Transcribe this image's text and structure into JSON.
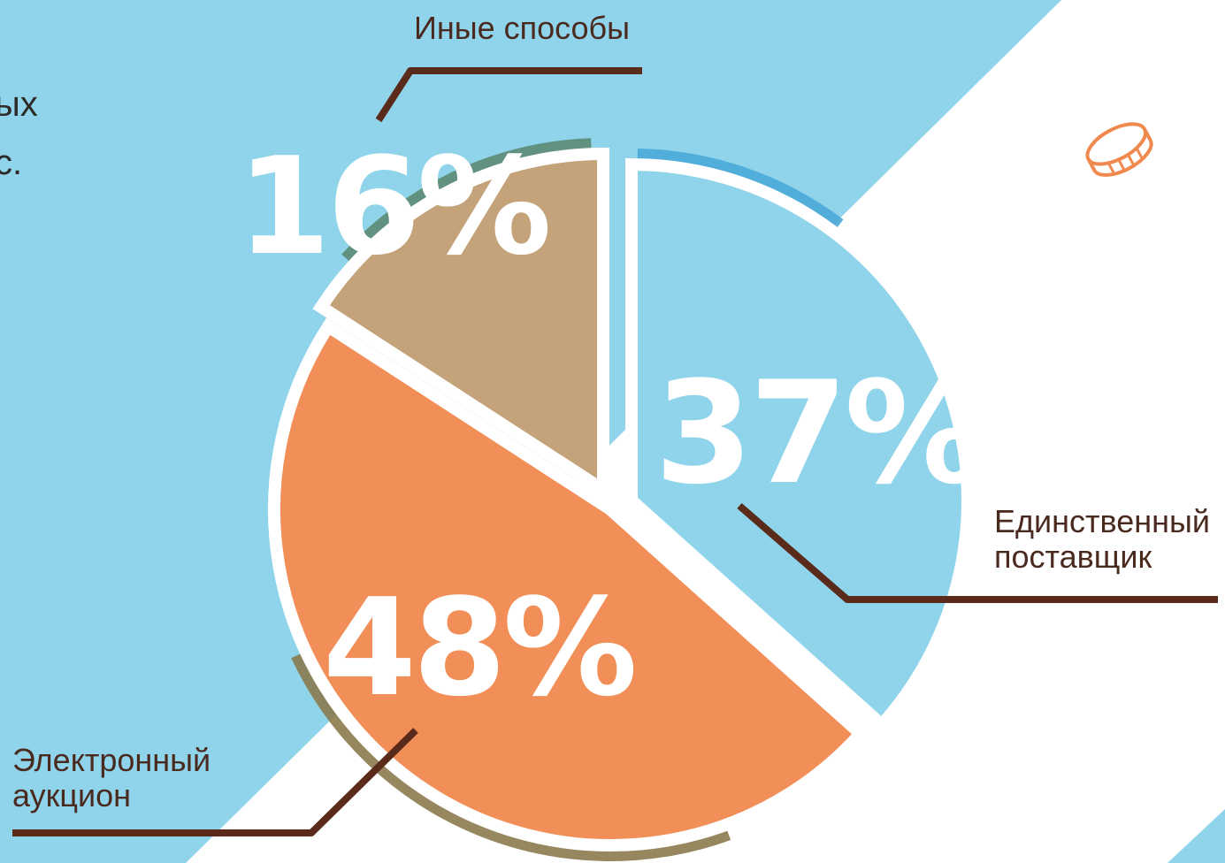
{
  "colors": {
    "background_blue": "#8fd4ea",
    "white": "#ffffff",
    "other_slice": "#c4a27a",
    "other_ring": "#5c8a73",
    "auction_slice": "#f28f58",
    "auction_ring": "#8b7a4e",
    "single_slice": "#8fd4ea",
    "single_ring": "#4aa9d8",
    "leader_line": "#5a2a1a",
    "coin_icon": "#f0894d"
  },
  "corner_text": {
    "line1": "ых",
    "line2": "с."
  },
  "icons": {
    "coin": "coin-icon"
  },
  "chart_data": {
    "type": "pie",
    "title": "",
    "slices": [
      {
        "label": "Электронный аукцион",
        "label_lines": [
          "Электронный",
          "аукцион"
        ],
        "value": 48,
        "display": "48%"
      },
      {
        "label": "Единственный поставщик",
        "label_lines": [
          "Единственный",
          "поставщик"
        ],
        "value": 37,
        "display": "37%"
      },
      {
        "label": "Иные способы",
        "label_lines": [
          "Иные способы"
        ],
        "value": 16,
        "display": "16%"
      }
    ]
  }
}
